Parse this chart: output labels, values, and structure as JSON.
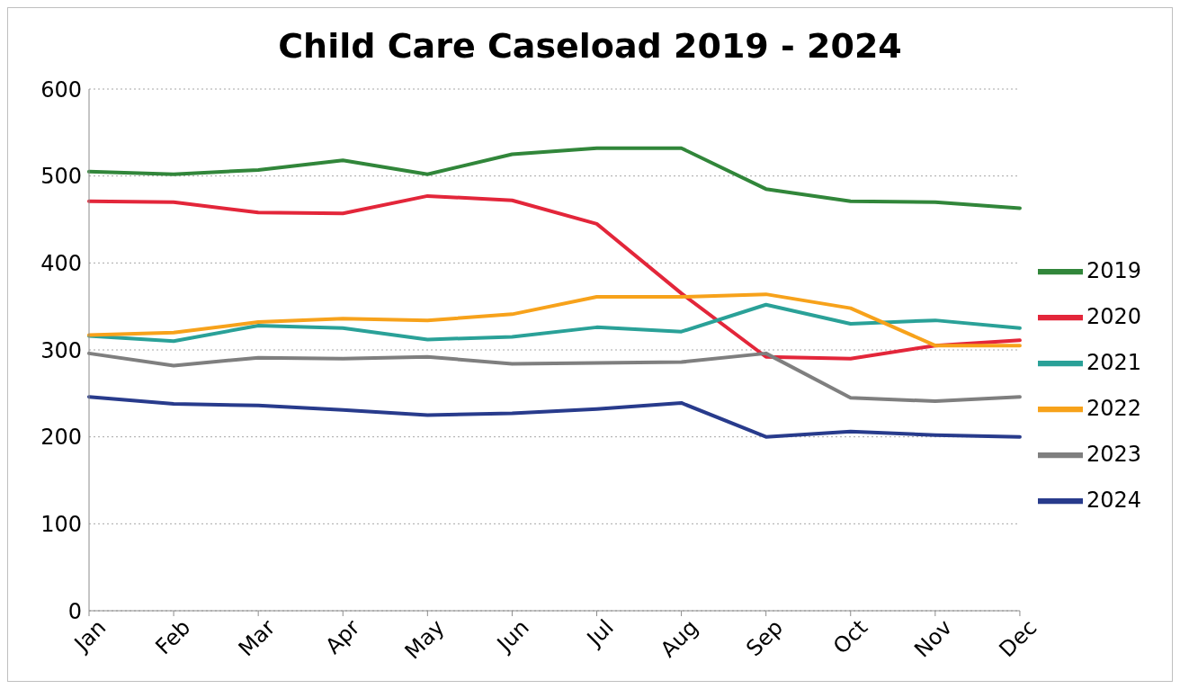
{
  "chart_data": {
    "type": "line",
    "title": "Child Care Caseload 2019 - 2024",
    "categories": [
      "Jan",
      "Feb",
      "Mar",
      "Apr",
      "May",
      "Jun",
      "Jul",
      "Aug",
      "Sep",
      "Oct",
      "Nov",
      "Dec"
    ],
    "series": [
      {
        "name": "2019",
        "color": "#31863a",
        "values": [
          505,
          502,
          507,
          518,
          502,
          525,
          532,
          532,
          485,
          471,
          470,
          463
        ]
      },
      {
        "name": "2020",
        "color": "#e3263a",
        "values": [
          471,
          470,
          458,
          457,
          477,
          472,
          445,
          365,
          292,
          290,
          305,
          311
        ]
      },
      {
        "name": "2021",
        "color": "#2aa198",
        "values": [
          316,
          310,
          328,
          325,
          312,
          315,
          326,
          321,
          352,
          330,
          334,
          325
        ]
      },
      {
        "name": "2022",
        "color": "#f7a21b",
        "values": [
          317,
          320,
          332,
          336,
          334,
          341,
          361,
          361,
          364,
          348,
          305,
          305
        ]
      },
      {
        "name": "2023",
        "color": "#7f7f7f",
        "values": [
          296,
          282,
          291,
          290,
          292,
          284,
          285,
          286,
          296,
          245,
          241,
          246
        ]
      },
      {
        "name": "2024",
        "color": "#283b8c",
        "values": [
          246,
          238,
          236,
          231,
          225,
          227,
          232,
          239,
          200,
          206,
          202,
          200
        ]
      }
    ],
    "ylim": [
      0,
      600
    ],
    "yticks": [
      0,
      100,
      200,
      300,
      400,
      500,
      600
    ],
    "grid": "y",
    "legend": "right",
    "marker": "none",
    "line_style": "solid"
  }
}
